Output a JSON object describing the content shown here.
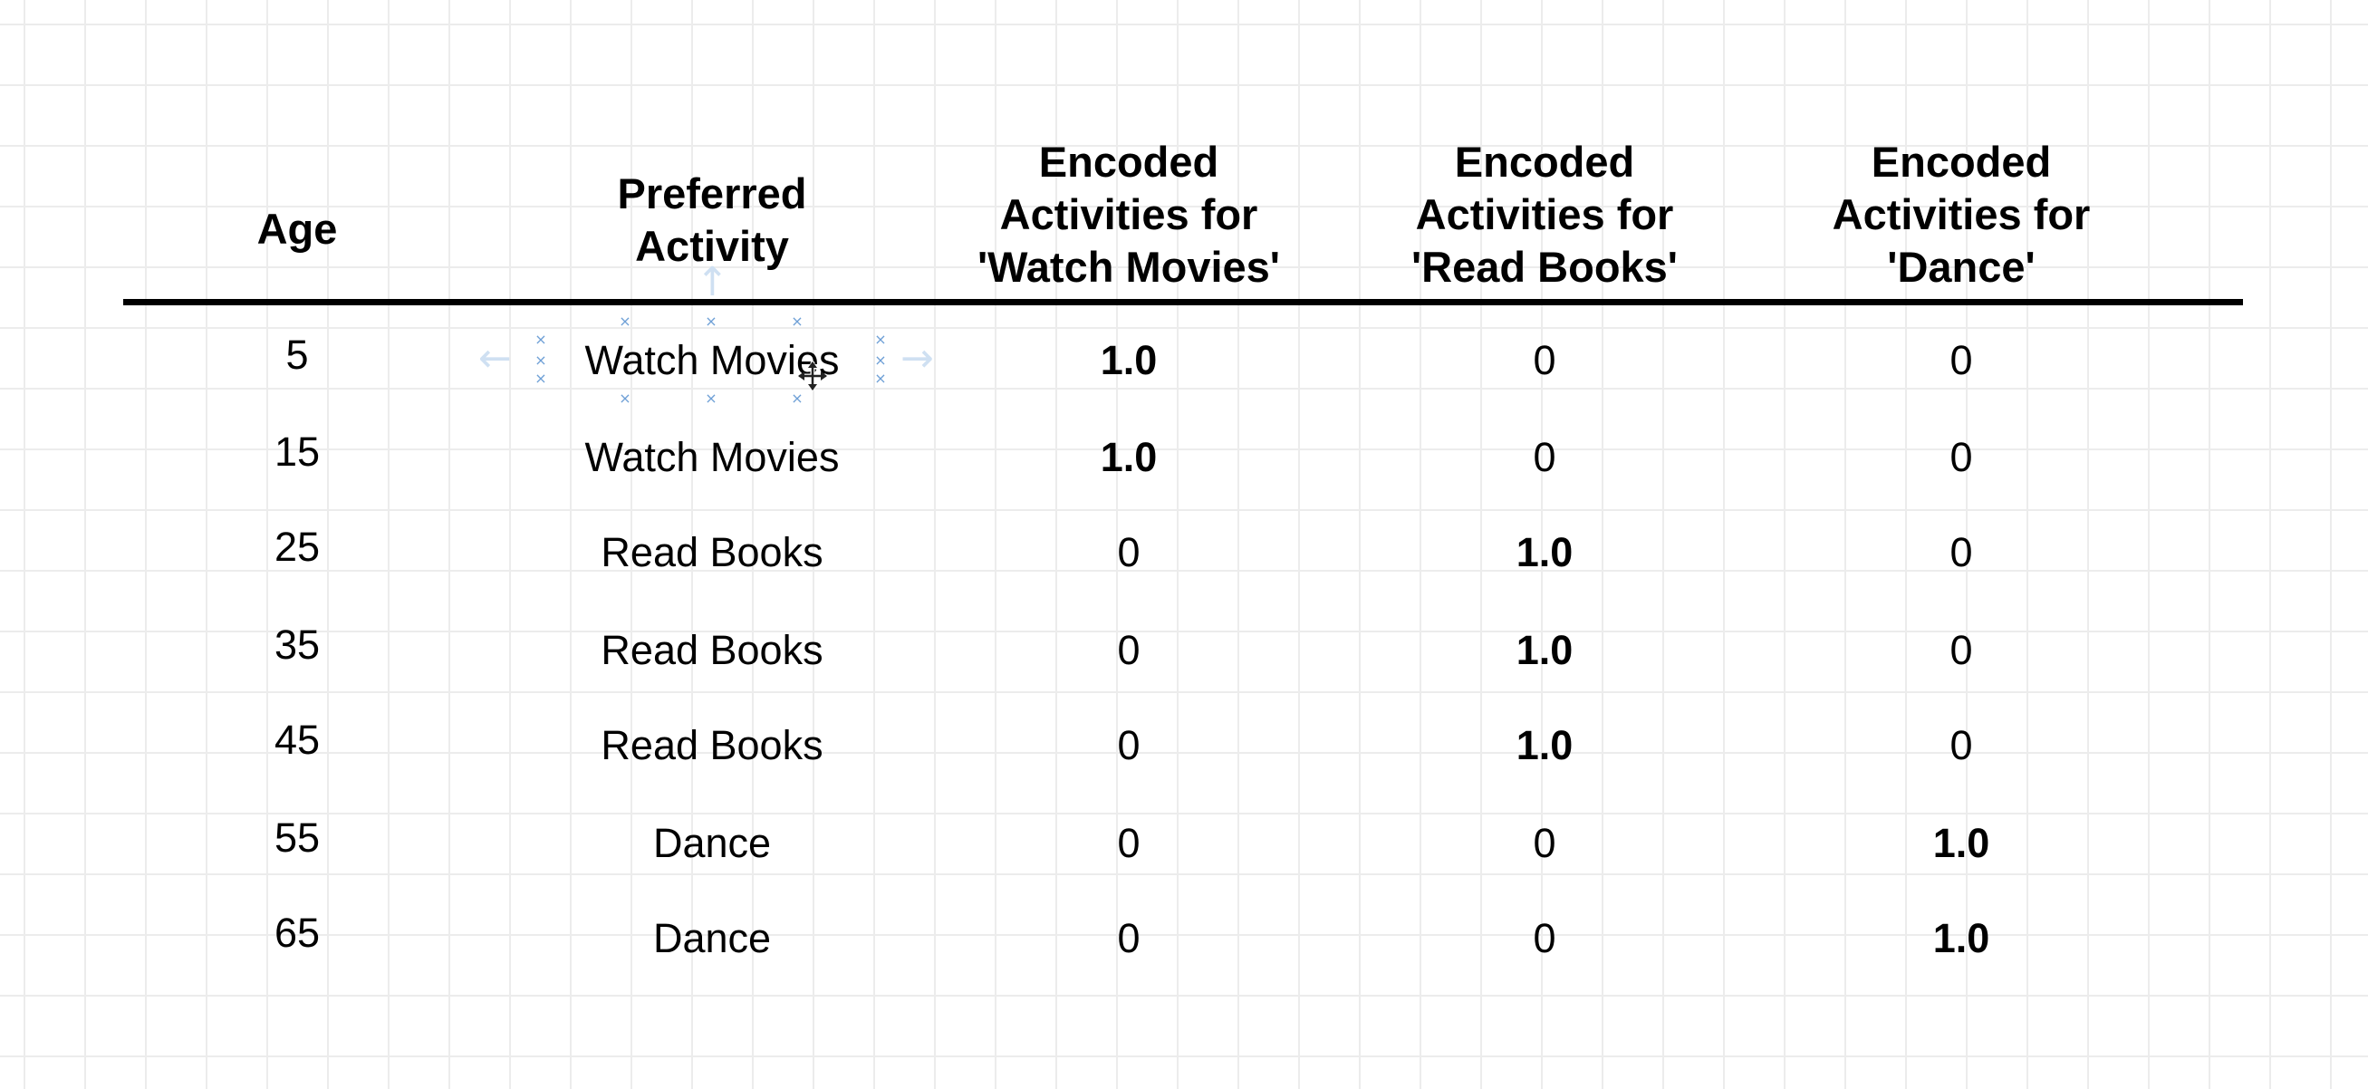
{
  "table": {
    "headers": [
      "Age",
      "Preferred\nActivity",
      "Encoded\nActivities for\n'Watch Movies'",
      "Encoded\nActivities for\n'Read Books'",
      "Encoded\nActivities for\n'Dance'"
    ],
    "rows": [
      {
        "age": "5",
        "activity": "Watch Movies",
        "watch": "1.0",
        "read": "0",
        "dance": "0"
      },
      {
        "age": "15",
        "activity": "Watch Movies",
        "watch": "1.0",
        "read": "0",
        "dance": "0"
      },
      {
        "age": "25",
        "activity": "Read Books",
        "watch": "0",
        "read": "1.0",
        "dance": "0"
      },
      {
        "age": "35",
        "activity": "Read Books",
        "watch": "0",
        "read": "1.0",
        "dance": "0"
      },
      {
        "age": "45",
        "activity": "Read Books",
        "watch": "0",
        "read": "1.0",
        "dance": "0"
      },
      {
        "age": "55",
        "activity": "Dance",
        "watch": "0",
        "read": "0",
        "dance": "1.0"
      },
      {
        "age": "65",
        "activity": "Dance",
        "watch": "0",
        "read": "0",
        "dance": "1.0"
      }
    ]
  },
  "selection": {
    "selected_cell": "Watch Movies",
    "handle_icon": "x-handle-icon",
    "cursor_icon": "move-cursor-icon",
    "accent_color": "#6d9fd6"
  }
}
